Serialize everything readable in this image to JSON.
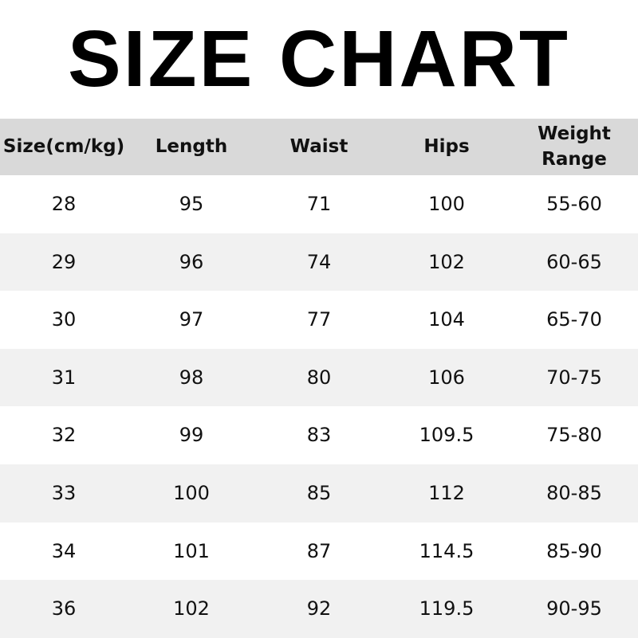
{
  "title": "SIZE CHART",
  "headers": [
    "Size(cm/kg)",
    "Length",
    "Waist",
    "Hips",
    "Weight Range"
  ],
  "rows": [
    [
      "28",
      "95",
      "71",
      "100",
      "55-60"
    ],
    [
      "29",
      "96",
      "74",
      "102",
      "60-65"
    ],
    [
      "30",
      "97",
      "77",
      "104",
      "65-70"
    ],
    [
      "31",
      "98",
      "80",
      "106",
      "70-75"
    ],
    [
      "32",
      "99",
      "83",
      "109.5",
      "75-80"
    ],
    [
      "33",
      "100",
      "85",
      "112",
      "80-85"
    ],
    [
      "34",
      "101",
      "87",
      "114.5",
      "85-90"
    ],
    [
      "36",
      "102",
      "92",
      "119.5",
      "90-95"
    ]
  ],
  "colors": {
    "header_bg": "#d9d9d9",
    "alt_row_bg": "#f1f1f1"
  }
}
